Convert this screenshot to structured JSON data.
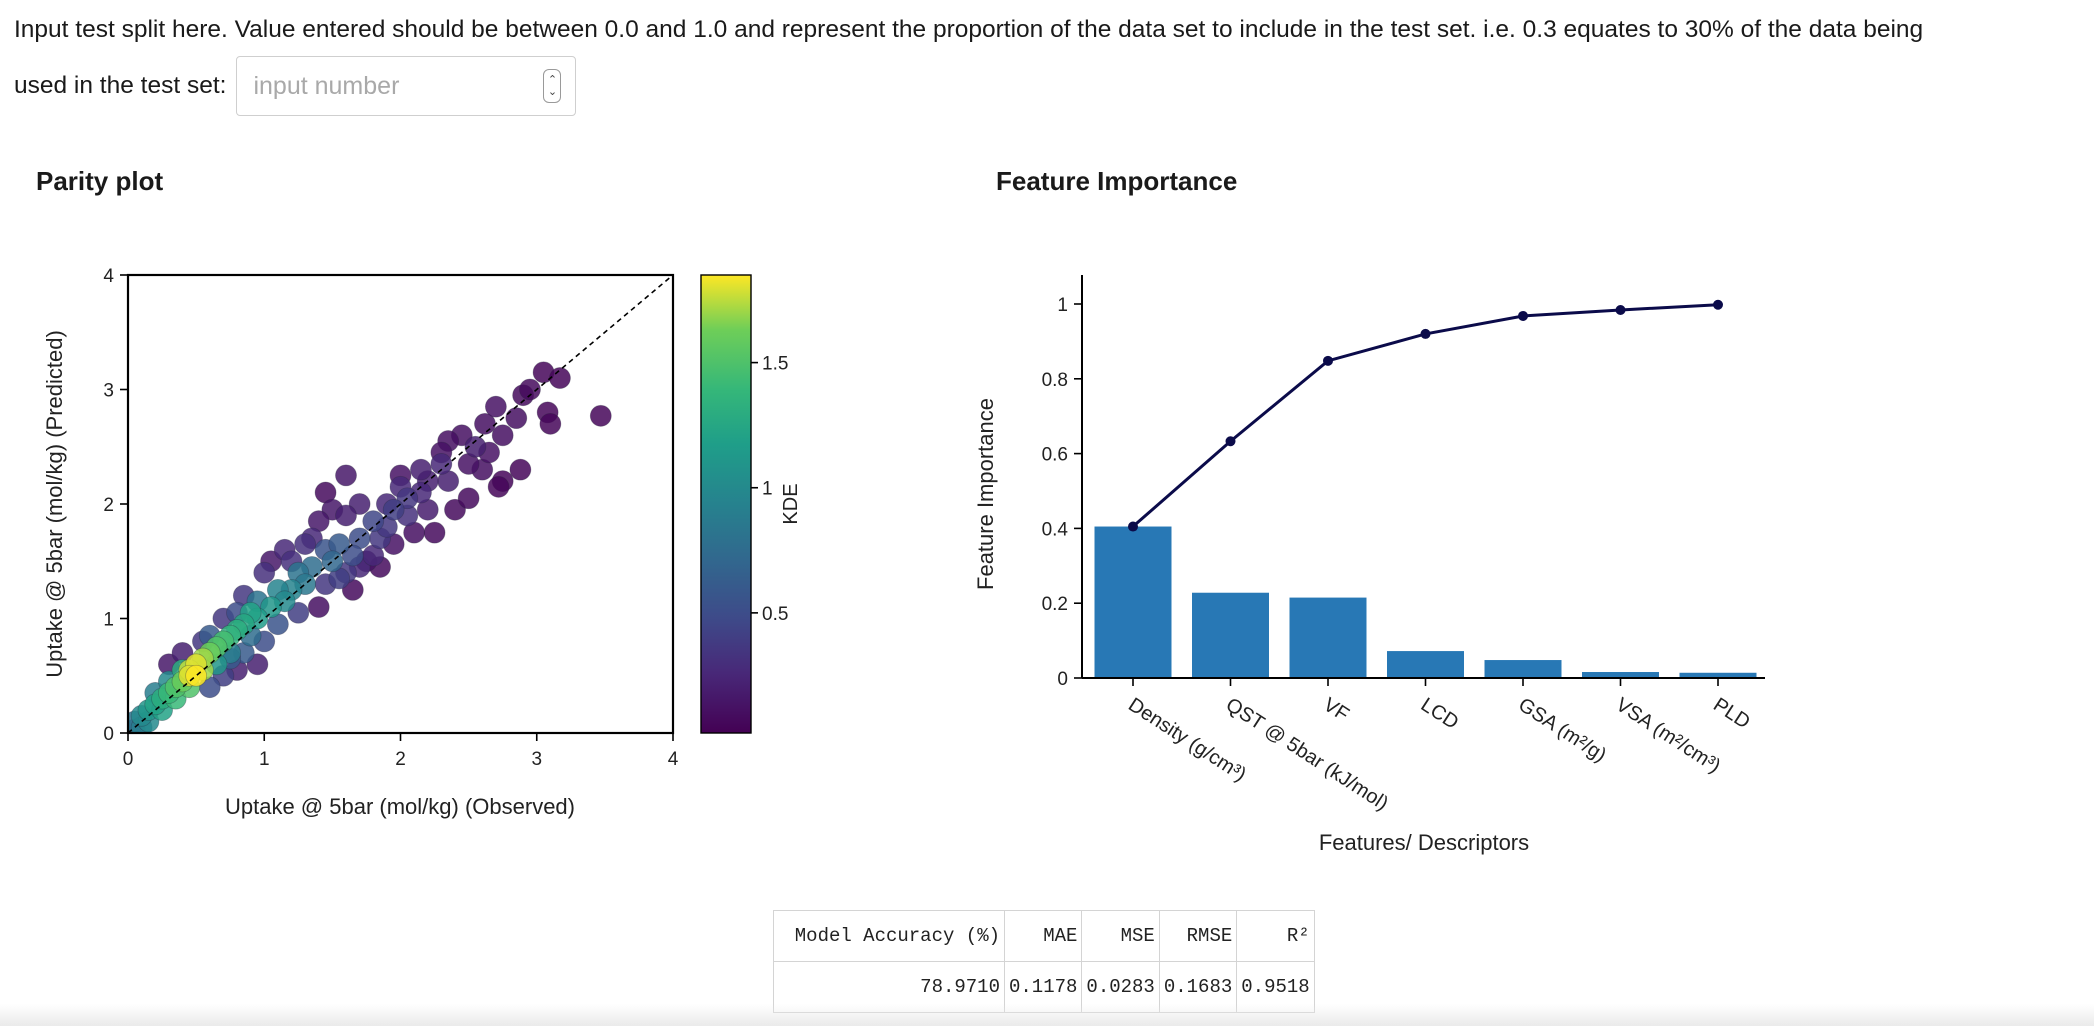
{
  "instruction": {
    "line1": "Input test split here. Value entered should be between 0.0 and 1.0 and represent the proportion of the data set to include in the test set. i.e. 0.3 equates to 30% of the data being",
    "line2": "used in the test set:",
    "input_placeholder": "input number",
    "input_value": ""
  },
  "parity_plot": {
    "heading": "Parity plot"
  },
  "feature_importance": {
    "heading": "Feature Importance"
  },
  "chart_data": [
    {
      "type": "scatter",
      "title": "",
      "xlabel": "Uptake @ 5bar (mol/kg) (Observed)",
      "ylabel": "Uptake @ 5bar (mol/kg) (Predicted)",
      "xlim": [
        0,
        4
      ],
      "ylim": [
        0,
        4
      ],
      "xticks": [
        "0",
        "1",
        "2",
        "3",
        "4"
      ],
      "yticks": [
        "0",
        "1",
        "2",
        "3",
        "4"
      ],
      "reference_line": "y = x (dashed)",
      "colorbar": {
        "label": "KDE",
        "ticks": [
          "0.5",
          "1",
          "1.5"
        ],
        "range": [
          0.02,
          1.85
        ],
        "colormap": "viridis"
      },
      "points": [
        [
          3.47,
          2.77,
          0.05
        ],
        [
          3.05,
          3.15,
          0.05
        ],
        [
          3.17,
          3.1,
          0.05
        ],
        [
          3.08,
          2.8,
          0.05
        ],
        [
          3.1,
          2.7,
          0.05
        ],
        [
          2.9,
          2.95,
          0.08
        ],
        [
          2.85,
          2.75,
          0.1
        ],
        [
          2.75,
          2.6,
          0.1
        ],
        [
          2.88,
          2.3,
          0.05
        ],
        [
          2.75,
          2.2,
          0.05
        ],
        [
          2.62,
          2.7,
          0.1
        ],
        [
          2.65,
          2.45,
          0.12
        ],
        [
          2.72,
          2.15,
          0.05
        ],
        [
          2.5,
          2.35,
          0.12
        ],
        [
          2.45,
          2.6,
          0.1
        ],
        [
          2.35,
          2.2,
          0.2
        ],
        [
          2.2,
          2.2,
          0.2
        ],
        [
          2.4,
          1.95,
          0.08
        ],
        [
          2.5,
          2.05,
          0.08
        ],
        [
          2.3,
          2.45,
          0.12
        ],
        [
          2.35,
          2.55,
          0.1
        ],
        [
          2.15,
          2.1,
          0.25
        ],
        [
          2.2,
          1.95,
          0.18
        ],
        [
          2.15,
          2.3,
          0.2
        ],
        [
          2.25,
          1.75,
          0.08
        ],
        [
          2.0,
          2.15,
          0.25
        ],
        [
          2.05,
          1.9,
          0.3
        ],
        [
          1.95,
          1.65,
          0.12
        ],
        [
          2.1,
          1.75,
          0.1
        ],
        [
          1.9,
          2.0,
          0.25
        ],
        [
          2.0,
          2.25,
          0.12
        ],
        [
          1.95,
          1.95,
          0.4
        ],
        [
          1.8,
          1.85,
          0.45
        ],
        [
          1.85,
          1.7,
          0.35
        ],
        [
          1.75,
          1.5,
          0.12
        ],
        [
          1.65,
          1.25,
          0.08
        ],
        [
          1.85,
          1.45,
          0.08
        ],
        [
          1.7,
          1.7,
          0.5
        ],
        [
          1.7,
          2.0,
          0.2
        ],
        [
          1.6,
          1.9,
          0.2
        ],
        [
          1.65,
          1.55,
          0.5
        ],
        [
          1.55,
          1.65,
          0.6
        ],
        [
          1.6,
          1.4,
          0.35
        ],
        [
          1.5,
          1.5,
          0.7
        ],
        [
          1.45,
          1.6,
          0.55
        ],
        [
          1.45,
          1.3,
          0.35
        ],
        [
          1.4,
          1.1,
          0.1
        ],
        [
          1.35,
          1.45,
          0.75
        ],
        [
          1.35,
          1.7,
          0.25
        ],
        [
          1.5,
          1.95,
          0.15
        ],
        [
          1.4,
          1.85,
          0.15
        ],
        [
          1.6,
          2.25,
          0.15
        ],
        [
          1.45,
          2.1,
          0.08
        ],
        [
          1.3,
          1.3,
          0.85
        ],
        [
          1.25,
          1.4,
          0.8
        ],
        [
          1.2,
          1.25,
          0.95
        ],
        [
          1.25,
          1.05,
          0.4
        ],
        [
          1.15,
          1.6,
          0.25
        ],
        [
          1.15,
          1.15,
          1.0
        ],
        [
          1.1,
          1.25,
          0.95
        ],
        [
          1.05,
          1.1,
          1.1
        ],
        [
          1.1,
          0.95,
          0.55
        ],
        [
          1.0,
          1.4,
          0.3
        ],
        [
          1.05,
          1.5,
          0.15
        ],
        [
          0.95,
          1.15,
          0.8
        ],
        [
          0.95,
          1.0,
          1.15
        ],
        [
          0.9,
          1.05,
          1.2
        ],
        [
          0.9,
          0.85,
          0.75
        ],
        [
          0.85,
          0.95,
          1.25
        ],
        [
          0.8,
          0.9,
          1.3
        ],
        [
          0.85,
          1.2,
          0.35
        ],
        [
          0.8,
          1.05,
          0.5
        ],
        [
          0.75,
          0.85,
          1.35
        ],
        [
          0.75,
          0.7,
          0.9
        ],
        [
          0.7,
          0.8,
          1.45
        ],
        [
          0.95,
          0.6,
          0.2
        ],
        [
          0.8,
          0.55,
          0.2
        ],
        [
          0.7,
          1.0,
          0.35
        ],
        [
          0.65,
          0.75,
          1.5
        ],
        [
          0.65,
          0.6,
          1.1
        ],
        [
          0.6,
          0.7,
          1.6
        ],
        [
          0.6,
          0.85,
          0.6
        ],
        [
          0.55,
          0.55,
          1.7
        ],
        [
          0.55,
          0.65,
          1.7
        ],
        [
          0.5,
          0.6,
          1.8
        ],
        [
          0.5,
          0.5,
          1.85
        ],
        [
          0.45,
          0.5,
          1.8
        ],
        [
          0.45,
          0.55,
          1.75
        ],
        [
          0.45,
          0.4,
          1.5
        ],
        [
          0.4,
          0.45,
          1.6
        ],
        [
          0.4,
          0.55,
          1.3
        ],
        [
          0.35,
          0.4,
          1.5
        ],
        [
          0.35,
          0.3,
          1.4
        ],
        [
          0.3,
          0.35,
          1.4
        ],
        [
          0.3,
          0.45,
          1.0
        ],
        [
          0.25,
          0.3,
          1.3
        ],
        [
          0.25,
          0.2,
          1.2
        ],
        [
          0.2,
          0.25,
          1.2
        ],
        [
          0.2,
          0.35,
          0.9
        ],
        [
          0.15,
          0.2,
          1.1
        ],
        [
          0.15,
          0.1,
          1.0
        ],
        [
          0.1,
          0.15,
          1.0
        ],
        [
          0.1,
          0.05,
          0.9
        ],
        [
          0.05,
          0.1,
          0.8
        ],
        [
          0.05,
          0.03,
          0.7
        ],
        [
          0.55,
          0.8,
          0.35
        ],
        [
          0.6,
          0.4,
          0.5
        ],
        [
          0.7,
          0.5,
          0.4
        ],
        [
          0.4,
          0.7,
          0.2
        ],
        [
          0.3,
          0.6,
          0.15
        ],
        [
          0.85,
          0.7,
          0.6
        ],
        [
          1.0,
          0.8,
          0.5
        ],
        [
          1.2,
          1.5,
          0.3
        ],
        [
          1.3,
          1.65,
          0.3
        ],
        [
          0.75,
          0.65,
          0.6
        ],
        [
          1.55,
          1.35,
          0.4
        ],
        [
          1.7,
          1.45,
          0.25
        ],
        [
          1.8,
          1.55,
          0.25
        ],
        [
          1.9,
          1.8,
          0.35
        ],
        [
          2.05,
          2.05,
          0.35
        ],
        [
          2.3,
          2.35,
          0.25
        ],
        [
          2.55,
          2.5,
          0.2
        ],
        [
          2.6,
          2.3,
          0.1
        ],
        [
          2.7,
          2.85,
          0.12
        ],
        [
          2.95,
          3.0,
          0.08
        ]
      ]
    },
    {
      "type": "bar",
      "title": "",
      "xlabel": "Features/ Descriptors",
      "ylabel": "Feature Importance",
      "ylim": [
        0,
        1.05
      ],
      "yticks": [
        "0",
        "0.2",
        "0.4",
        "0.6",
        "0.8",
        "1"
      ],
      "categories": [
        "Density (g/cm³)",
        "QST @ 5bar (kJ/mol)",
        "VF",
        "LCD",
        "GSA (m²/g)",
        "VSA (m²/cm³)",
        "PLD"
      ],
      "series": [
        {
          "type": "bar",
          "values": [
            0.405,
            0.228,
            0.215,
            0.072,
            0.048,
            0.016,
            0.014
          ],
          "color": "#2878b5"
        },
        {
          "type": "line",
          "values": [
            0.405,
            0.633,
            0.848,
            0.92,
            0.968,
            0.984,
            0.998
          ],
          "color": "#0b0b4a"
        }
      ]
    }
  ],
  "metrics_table": {
    "headers": [
      "Model Accuracy (%)",
      "MAE",
      "MSE",
      "RMSE",
      "R²"
    ],
    "values": [
      "78.9710",
      "0.1178",
      "0.0283",
      "0.1683",
      "0.9518"
    ]
  }
}
